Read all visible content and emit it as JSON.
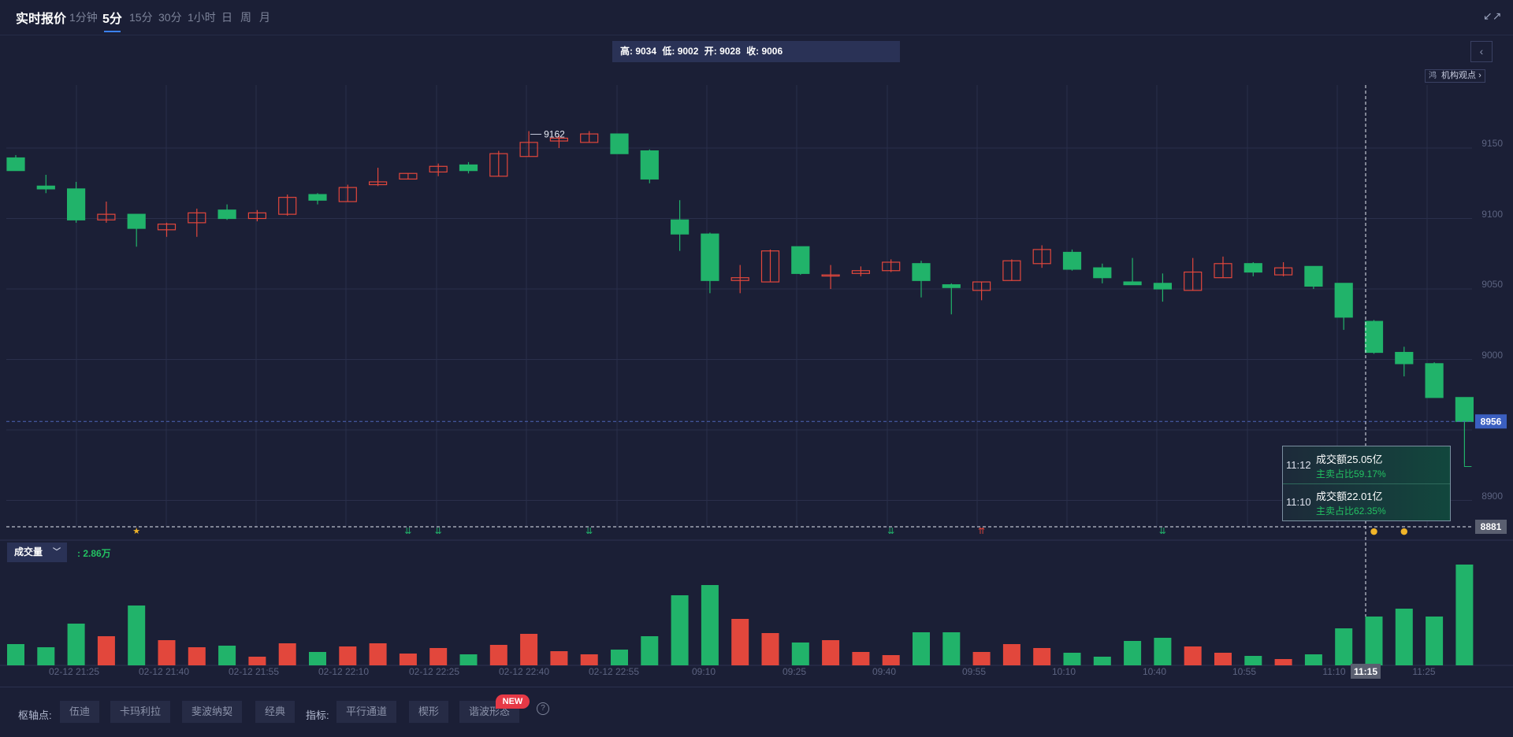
{
  "header": {
    "title": "实时报价",
    "tabs": [
      {
        "label": "1分钟",
        "active": false
      },
      {
        "label": "5分",
        "active": true
      },
      {
        "label": "15分",
        "active": false
      },
      {
        "label": "30分",
        "active": false
      },
      {
        "label": "1小时",
        "active": false
      },
      {
        "label": "日",
        "active": false
      },
      {
        "label": "周",
        "active": false
      },
      {
        "label": "月",
        "active": false
      }
    ],
    "shrink_icon": "shrink-icon"
  },
  "ohlc": {
    "high": "高: 9034",
    "low": "低: 9002",
    "open": "开: 9028",
    "close": "收: 9006"
  },
  "insight": {
    "icon_text": "鸿",
    "label": "机构观点",
    "arrow": "›"
  },
  "colors": {
    "up": "#e2473c",
    "down": "#21b36a",
    "bg": "#1b1f36",
    "grid": "#2a2f4b",
    "price_tag_blue": "#3b5fc0",
    "price_tag_gray": "#5a5f70"
  },
  "chart_data": {
    "type": "candlestick",
    "y_ticks": [
      "9150",
      "9100",
      "9050",
      "9000",
      "8900"
    ],
    "ylim": [
      8874,
      9212
    ],
    "max_label": "9162",
    "x_labels": [
      "02-12 21:25",
      "02-12 21:40",
      "02-12 21:55",
      "02-12 22:10",
      "02-12 22:25",
      "02-12 22:40",
      "02-12 22:55",
      "09:10",
      "09:25",
      "09:40",
      "09:55",
      "10:10",
      "10:40",
      "10:55",
      "11:10",
      "11:15",
      "11:25"
    ],
    "crosshair_time": "11:15",
    "current_price_label": "8956",
    "crosshair_price_label": "8881",
    "candles": [
      {
        "o": 9143,
        "h": 9145,
        "c": 9134,
        "l": 9134
      },
      {
        "o": 9123,
        "h": 9131,
        "c": 9121,
        "l": 9118
      },
      {
        "o": 9121,
        "h": 9126,
        "c": 9099,
        "l": 9097
      },
      {
        "o": 9099,
        "h": 9112,
        "c": 9103,
        "l": 9097
      },
      {
        "o": 9103,
        "h": 9103,
        "c": 9093,
        "l": 9080
      },
      {
        "o": 9092,
        "h": 9097,
        "c": 9096,
        "l": 9087
      },
      {
        "o": 9097,
        "h": 9107,
        "c": 9104,
        "l": 9087
      },
      {
        "o": 9106,
        "h": 9110,
        "c": 9100,
        "l": 9099
      },
      {
        "o": 9100,
        "h": 9106,
        "c": 9104,
        "l": 9098
      },
      {
        "o": 9103,
        "h": 9117,
        "c": 9115,
        "l": 9102
      },
      {
        "o": 9117,
        "h": 9118,
        "c": 9113,
        "l": 9110
      },
      {
        "o": 9112,
        "h": 9124,
        "c": 9122,
        "l": 9112
      },
      {
        "o": 9124,
        "h": 9136,
        "c": 9126,
        "l": 9123
      },
      {
        "o": 9128,
        "h": 9132,
        "c": 9132,
        "l": 9128
      },
      {
        "o": 9133,
        "h": 9139,
        "c": 9137,
        "l": 9130
      },
      {
        "o": 9138,
        "h": 9140,
        "c": 9134,
        "l": 9132
      },
      {
        "o": 9130,
        "h": 9148,
        "c": 9146,
        "l": 9130
      },
      {
        "o": 9144,
        "h": 9162,
        "c": 9154,
        "l": 9144
      },
      {
        "o": 9155,
        "h": 9159,
        "c": 9157,
        "l": 9150
      },
      {
        "o": 9154,
        "h": 9162,
        "c": 9160,
        "l": 9154
      },
      {
        "o": 9160,
        "h": 9160,
        "c": 9146,
        "l": 9146
      },
      {
        "o": 9148,
        "h": 9149,
        "c": 9128,
        "l": 9125
      },
      {
        "o": 9099,
        "h": 9113,
        "c": 9089,
        "l": 9077
      },
      {
        "o": 9089,
        "h": 9090,
        "c": 9056,
        "l": 9047
      },
      {
        "o": 9056,
        "h": 9067,
        "c": 9058,
        "l": 9047
      },
      {
        "o": 9055,
        "h": 9078,
        "c": 9077,
        "l": 9055
      },
      {
        "o": 9080,
        "h": 9080,
        "c": 9061,
        "l": 9060
      },
      {
        "o": 9060,
        "h": 9067,
        "c": 9060,
        "l": 9050
      },
      {
        "o": 9061,
        "h": 9066,
        "c": 9063,
        "l": 9059
      },
      {
        "o": 9063,
        "h": 9071,
        "c": 9069,
        "l": 9062
      },
      {
        "o": 9068,
        "h": 9070,
        "c": 9056,
        "l": 9044
      },
      {
        "o": 9053,
        "h": 9054,
        "c": 9051,
        "l": 9032
      },
      {
        "o": 9049,
        "h": 9055,
        "c": 9055,
        "l": 9042
      },
      {
        "o": 9056,
        "h": 9071,
        "c": 9070,
        "l": 9056
      },
      {
        "o": 9068,
        "h": 9081,
        "c": 9078,
        "l": 9065
      },
      {
        "o": 9076,
        "h": 9078,
        "c": 9064,
        "l": 9063
      },
      {
        "o": 9065,
        "h": 9068,
        "c": 9058,
        "l": 9054
      },
      {
        "o": 9055,
        "h": 9072,
        "c": 9053,
        "l": 9053
      },
      {
        "o": 9054,
        "h": 9061,
        "c": 9050,
        "l": 9041
      },
      {
        "o": 9049,
        "h": 9072,
        "c": 9062,
        "l": 9049
      },
      {
        "o": 9058,
        "h": 9073,
        "c": 9068,
        "l": 9058
      },
      {
        "o": 9068,
        "h": 9069,
        "c": 9062,
        "l": 9059
      },
      {
        "o": 9060,
        "h": 9069,
        "c": 9065,
        "l": 9059
      },
      {
        "o": 9066,
        "h": 9066,
        "c": 9052,
        "l": 9050
      },
      {
        "o": 9054,
        "h": 9054,
        "c": 9030,
        "l": 9021
      },
      {
        "o": 9027,
        "h": 9028,
        "c": 9005,
        "l": 9004
      },
      {
        "o": 9005,
        "h": 9009,
        "c": 8997,
        "l": 8988
      },
      {
        "o": 8997,
        "h": 8998,
        "c": 8973,
        "l": 8973
      },
      {
        "o": 8973,
        "h": 8973,
        "c": 8956,
        "l": 8926
      }
    ],
    "volume": {
      "label": "成交量",
      "value": ": 2.86万",
      "values": [
        27,
        23,
        53,
        37,
        76,
        32,
        23,
        25,
        11,
        28,
        17,
        24,
        28,
        15,
        22,
        14,
        26,
        40,
        18,
        14,
        20,
        37,
        89,
        102,
        59,
        41,
        29,
        32,
        17,
        13,
        42,
        42,
        17,
        27,
        22,
        16,
        11,
        31,
        35,
        24,
        16,
        12,
        8,
        14,
        47,
        62,
        72,
        62,
        128
      ]
    },
    "event_markers": [
      {
        "index": 4,
        "symbol": "★",
        "color": "#f0b429"
      },
      {
        "index": 13,
        "symbol": "⇊",
        "color": "#21b36a"
      },
      {
        "index": 14,
        "symbol": "⇊",
        "color": "#21b36a"
      },
      {
        "index": 19,
        "symbol": "⇊",
        "color": "#21b36a"
      },
      {
        "index": 29,
        "symbol": "⇊",
        "color": "#21b36a"
      },
      {
        "index": 32,
        "symbol": "⇈",
        "color": "#e2473c"
      },
      {
        "index": 38,
        "symbol": "⇊",
        "color": "#21b36a"
      },
      {
        "index": 45,
        "symbol": "●",
        "color": "#f0b429"
      },
      {
        "index": 46,
        "symbol": "●",
        "color": "#f0b429"
      }
    ]
  },
  "tooltip": {
    "rows": [
      {
        "time": "11:12",
        "amount": "成交额25.05亿",
        "ratio": "主卖占比59.17%"
      },
      {
        "time": "11:10",
        "amount": "成交额22.01亿",
        "ratio": "主卖占比62.35%"
      }
    ]
  },
  "bottom": {
    "pivot_label": "枢轴点:",
    "pivot_buttons": [
      "伍迪",
      "卡玛利拉",
      "斐波纳契",
      "经典"
    ],
    "indicator_label": "指标:",
    "indicator_buttons": [
      "平行通道",
      "楔形",
      "谐波形态"
    ],
    "new_badge": "NEW",
    "help": "?"
  }
}
